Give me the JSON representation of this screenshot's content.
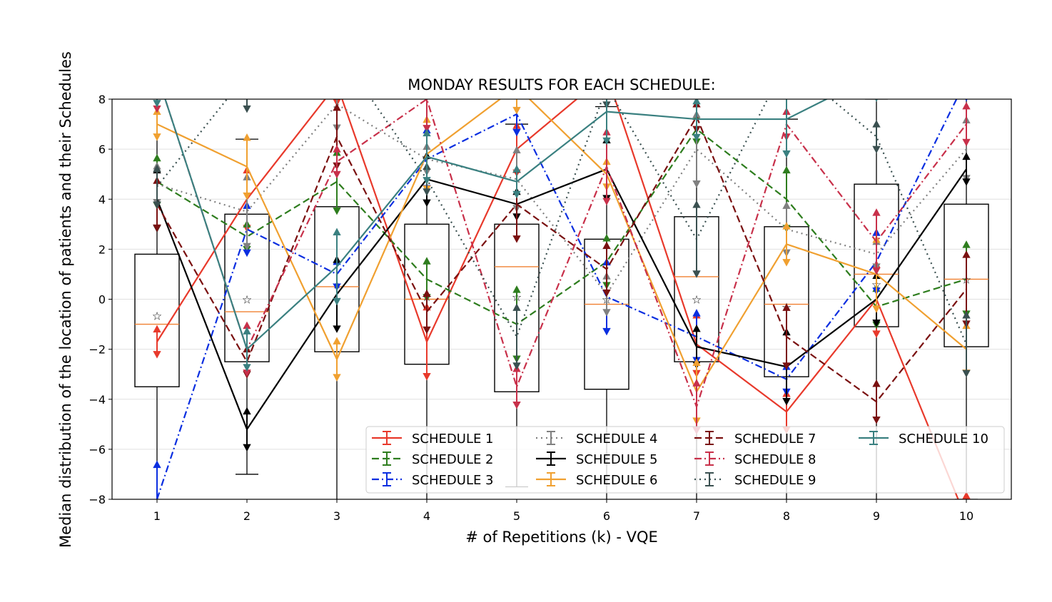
{
  "chart_data": {
    "type": "line",
    "title": "MONDAY RESULTS FOR EACH SCHEDULE:",
    "xlabel": "# of Repetitions (k) - VQE",
    "ylabel": "Median distribution of the location of patients and their Schedules",
    "xlim": [
      0.5,
      10.5
    ],
    "ylim": [
      -8,
      8
    ],
    "xticks": [
      1,
      2,
      3,
      4,
      5,
      6,
      7,
      8,
      9,
      10
    ],
    "yticks": [
      -8,
      -6,
      -4,
      -2,
      0,
      2,
      4,
      6,
      8
    ],
    "grid": "horizontal",
    "legend_position": "bottom-right",
    "x": [
      1,
      2,
      3,
      4,
      5,
      6,
      7,
      8,
      9,
      10
    ],
    "series": [
      {
        "name": "SCHEDULE 1",
        "color": "#e8392b",
        "dash": "solid",
        "values": [
          -1.7,
          4.0,
          8.6,
          -1.7,
          6.0,
          9.0,
          -1.8,
          -4.5,
          0.0,
          -8.8
        ]
      },
      {
        "name": " SCHEDULE 2",
        "color": "#2e7d1e",
        "dash": "dashed",
        "values": [
          4.7,
          2.5,
          4.7,
          0.8,
          -1.0,
          1.5,
          6.8,
          4.0,
          -0.3,
          0.8
        ]
      },
      {
        "name": "SCHEDULE 3",
        "color": "#0a2ee0",
        "dash": "dashdot",
        "values": [
          -8.0,
          2.8,
          1.0,
          5.6,
          7.4,
          0.1,
          -1.5,
          -3.2,
          1.5,
          8.8
        ]
      },
      {
        "name": "SCHEDULE 4",
        "color": "#808080",
        "dash": "dotted",
        "values": [
          4.6,
          3.5,
          7.8,
          5.6,
          4.8,
          0.2,
          6.0,
          2.8,
          1.8,
          6.0
        ]
      },
      {
        "name": "SCHEDULE 5",
        "color": "#000000",
        "dash": "solid",
        "values": [
          4.0,
          -5.2,
          0.2,
          4.8,
          3.8,
          5.2,
          -1.9,
          -2.7,
          0.0,
          5.2
        ]
      },
      {
        "name": "SCHEDULE 6",
        "color": "#f0a030",
        "dash": "solid",
        "values": [
          7.0,
          5.3,
          -2.4,
          5.8,
          8.5,
          5.0,
          -3.7,
          2.2,
          1.0,
          -2.0
        ]
      },
      {
        "name": "SCHEDULE 7",
        "color": "#7a1010",
        "dash": "dashed",
        "values": [
          3.8,
          -2.5,
          6.5,
          -0.5,
          3.8,
          1.2,
          7.3,
          -1.5,
          -4.1,
          0.4
        ]
      },
      {
        "name": " SCHEDULE 8",
        "color": "#c8304a",
        "dash": "dashdot",
        "values": [
          9.0,
          -2.0,
          5.5,
          8.0,
          -3.5,
          5.3,
          -4.3,
          7.0,
          2.3,
          7.0
        ]
      },
      {
        "name": "SCHEDULE 9",
        "color": "#3a5050",
        "dash": "dotted",
        "values": [
          4.5,
          9.0,
          10.0,
          4.8,
          -1.5,
          8.5,
          2.4,
          9.5,
          6.5,
          -1.8
        ]
      },
      {
        "name": "SCHEDULE 10",
        "color": "#3a8080",
        "dash": "solid",
        "values": [
          9.0,
          -2.0,
          1.3,
          5.7,
          4.7,
          7.5,
          7.2,
          7.2,
          9.0,
          9.0
        ]
      }
    ],
    "boxes": [
      {
        "x": 1,
        "q1": -3.5,
        "median": -1.0,
        "q3": 1.8,
        "whisker_low": -8.5,
        "whisker_high": 8.5,
        "mean": -0.65
      },
      {
        "x": 2,
        "q1": -2.5,
        "median": -0.5,
        "q3": 3.4,
        "whisker_low": -7.0,
        "whisker_high": 6.4,
        "mean": 0.0
      },
      {
        "x": 3,
        "q1": -2.1,
        "median": 0.5,
        "q3": 3.7,
        "whisker_low": -8.5,
        "whisker_high": 8.5,
        "mean": 0.6
      },
      {
        "x": 4,
        "q1": -2.6,
        "median": 0.0,
        "q3": 3.0,
        "whisker_low": -8.5,
        "whisker_high": 8.5,
        "mean": 0.1
      },
      {
        "x": 5,
        "q1": -3.7,
        "median": 1.3,
        "q3": 3.0,
        "whisker_low": -7.5,
        "whisker_high": 7.0,
        "mean": 0.1
      },
      {
        "x": 6,
        "q1": -3.6,
        "median": -0.2,
        "q3": 2.4,
        "whisker_low": -8.5,
        "whisker_high": 7.7,
        "mean": 0.0
      },
      {
        "x": 7,
        "q1": -2.5,
        "median": 0.9,
        "q3": 3.3,
        "whisker_low": -8.5,
        "whisker_high": 8.5,
        "mean": 0.0
      },
      {
        "x": 8,
        "q1": -3.1,
        "median": -0.2,
        "q3": 2.9,
        "whisker_low": -8.5,
        "whisker_high": 7.2,
        "mean": -0.3
      },
      {
        "x": 9,
        "q1": -1.1,
        "median": 1.0,
        "q3": 4.6,
        "whisker_low": -8.5,
        "whisker_high": 8.0,
        "mean": 0.6
      },
      {
        "x": 10,
        "q1": -1.9,
        "median": 0.8,
        "q3": 3.8,
        "whisker_low": -8.0,
        "whisker_high": 8.5,
        "mean": 0.8
      }
    ],
    "box_median_color": "#f08030"
  }
}
